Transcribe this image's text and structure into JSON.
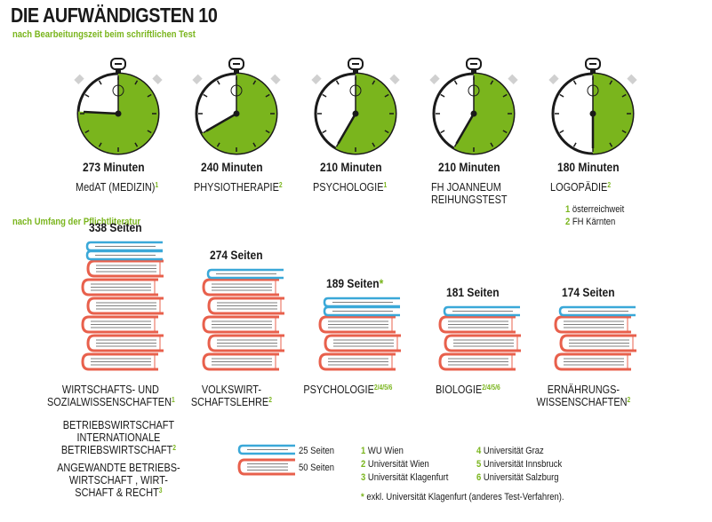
{
  "title": "DIE AUFWÄNDIGSTEN 10",
  "subtitle_time": "nach Bearbeitungszeit beim schriftlichen Test",
  "subtitle_pages": "nach Umfang der Pflichtliteratur",
  "colors": {
    "green": "#7ab51d",
    "red": "#e8604c",
    "blue": "#3aa8d8",
    "grey": "#d0d0d0",
    "dark": "#1a1a1a"
  },
  "icons": {
    "timer": "stopwatch-icon",
    "book_small": "blue-book-icon",
    "book_large": "red-book-icon"
  },
  "chart_data": [
    {
      "type": "pie",
      "max_minutes": 360,
      "items": [
        {
          "value": 273,
          "value_label": "273 Minuten",
          "label": "MedAT (MEDIZIN)",
          "sup": "1"
        },
        {
          "value": 240,
          "value_label": "240 Minuten",
          "label": "PHYSIOTHERAPIE",
          "sup": "2"
        },
        {
          "value": 210,
          "value_label": "210 Minuten",
          "label": "PSYCHOLOGIE",
          "sup": "1"
        },
        {
          "value": 210,
          "value_label": "210 Minuten",
          "label": "FH JOANNEUM\nREIHUNGSTEST",
          "sup": ""
        },
        {
          "value": 180,
          "value_label": "180 Minuten",
          "label": "LOGOPÄDIE",
          "sup": "2"
        }
      ]
    },
    {
      "type": "bar",
      "unit_large": 50,
      "unit_small": 25,
      "items": [
        {
          "value": 338,
          "value_label": "338 Seiten",
          "asterisk": "",
          "label": "WIRTSCHAFTS- UND\nSOZIALWISSENSCHAFTEN",
          "sup": "1"
        },
        {
          "value": 274,
          "value_label": "274 Seiten",
          "asterisk": "",
          "label": "VOLKSWIRT-\nSCHAFTSLEHRE",
          "sup": "2"
        },
        {
          "value": 189,
          "value_label": "189 Seiten",
          "asterisk": "*",
          "label": "PSYCHOLOGIE",
          "sup": "2/4/5/6"
        },
        {
          "value": 181,
          "value_label": "181 Seiten",
          "asterisk": "",
          "label": "BIOLOGIE",
          "sup": "2/4/5/6"
        },
        {
          "value": 174,
          "value_label": "174 Seiten",
          "asterisk": "",
          "label": "ERNÄHRUNGS-\nWISSENSCHAFTEN",
          "sup": "2"
        }
      ]
    }
  ],
  "extra_labels": [
    {
      "text": "BETRIEBSWIRTSCHAFT\nINTERNATIONALE\nBETRIEBSWIRTSCHAFT",
      "sup": "2"
    },
    {
      "text": "ANGEWANDTE BETRIEBS-\nWIRTSCHAFT , WIRT-\nSCHAFT & RECHT",
      "sup": "3"
    }
  ],
  "time_legend": [
    {
      "num": "1",
      "text": "österreichweit"
    },
    {
      "num": "2",
      "text": "FH Kärnten"
    }
  ],
  "book_legend": {
    "small": "25 Seiten",
    "large": "50 Seiten"
  },
  "uni_legend": [
    {
      "num": "1",
      "text": "WU Wien"
    },
    {
      "num": "2",
      "text": "Universität Wien"
    },
    {
      "num": "3",
      "text": "Universität Klagenfurt"
    },
    {
      "num": "4",
      "text": "Universität Graz"
    },
    {
      "num": "5",
      "text": "Universität Innsbruck"
    },
    {
      "num": "6",
      "text": "Universität Salzburg"
    }
  ],
  "footnote": {
    "mark": "*",
    "text": "exkl. Universität Klagenfurt (anderes Test-Verfahren)."
  }
}
